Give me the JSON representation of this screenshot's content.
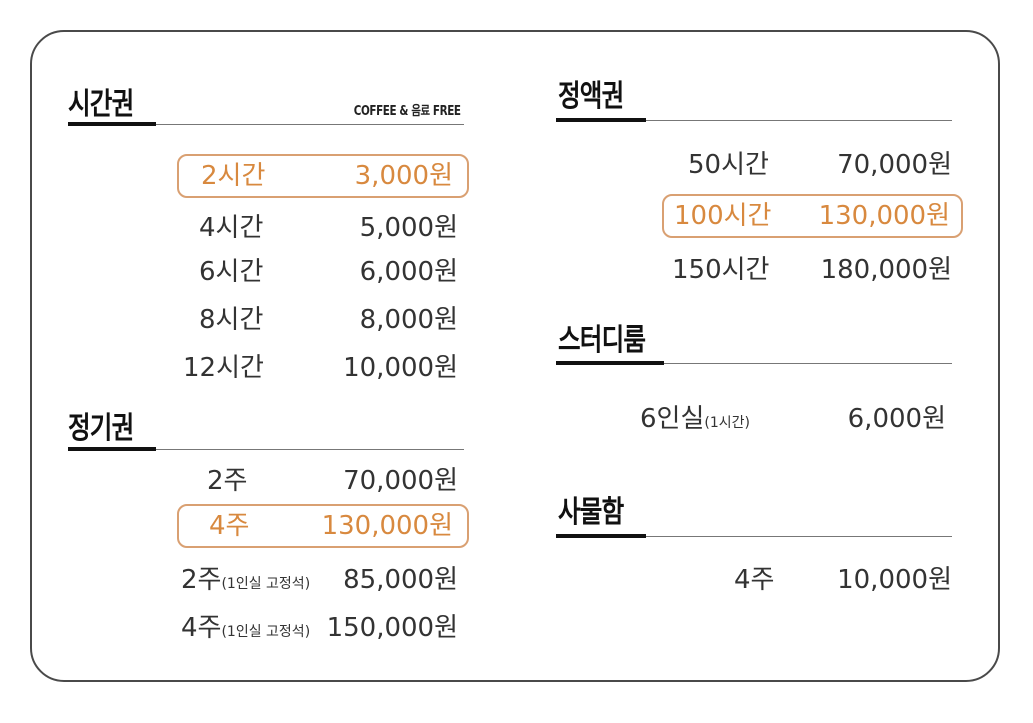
{
  "sections": {
    "hourly": {
      "title": "시간권",
      "note": "COFFEE & 음료 FREE",
      "rows": [
        {
          "name": "2시간",
          "price": "3,000원"
        },
        {
          "name": "4시간",
          "price": "5,000원"
        },
        {
          "name": "6시간",
          "price": "6,000원"
        },
        {
          "name": "8시간",
          "price": "8,000원"
        },
        {
          "name": "12시간",
          "price": "10,000원"
        }
      ]
    },
    "period": {
      "title": "정기권",
      "rows": [
        {
          "name": "2주",
          "price": "70,000원"
        },
        {
          "name": "4주",
          "price": "130,000원"
        },
        {
          "name": "2주",
          "sub": "(1인실 고정석)",
          "price": "85,000원"
        },
        {
          "name": "4주",
          "sub": "(1인실 고정석)",
          "price": "150,000원"
        }
      ]
    },
    "fixed": {
      "title": "정액권",
      "rows": [
        {
          "name": "50시간",
          "price": "70,000원"
        },
        {
          "name": "100시간",
          "price": "130,000원"
        },
        {
          "name": "150시간",
          "price": "180,000원"
        }
      ]
    },
    "studyroom": {
      "title": "스터디룸",
      "rows": [
        {
          "name": "6인실",
          "sub": "(1시간)",
          "price": "6,000원"
        }
      ]
    },
    "locker": {
      "title": "사물함",
      "rows": [
        {
          "name": "4주",
          "price": "10,000원"
        }
      ]
    }
  },
  "colors": {
    "highlight_text": "#d8893f",
    "highlight_border": "#d9a072"
  }
}
